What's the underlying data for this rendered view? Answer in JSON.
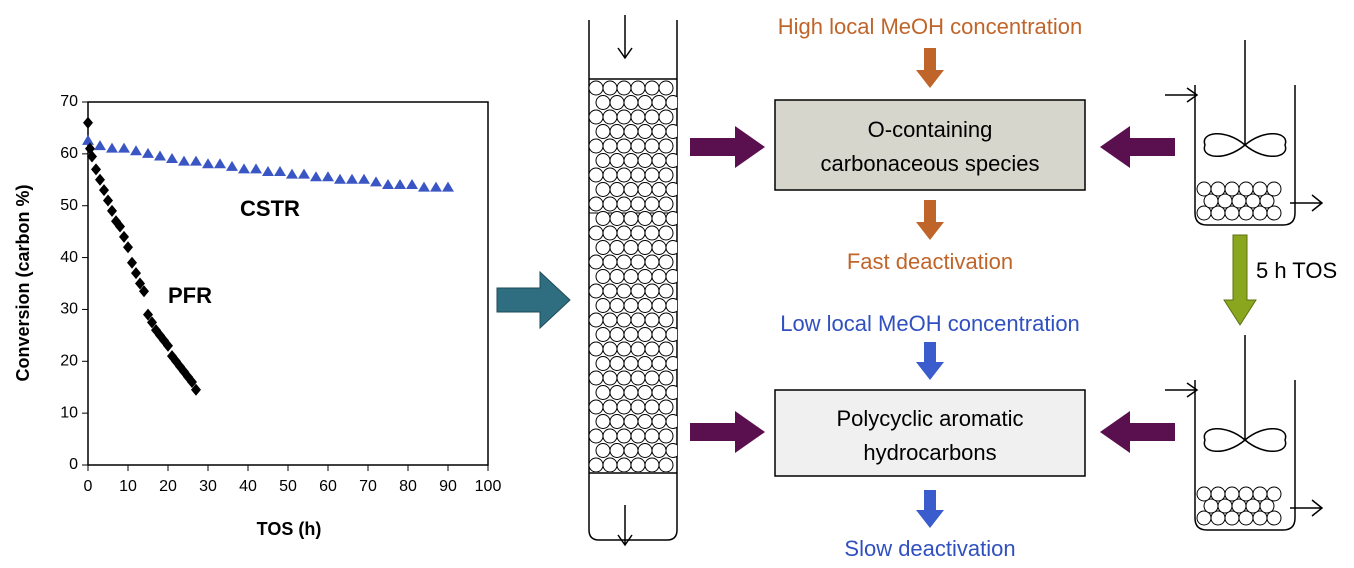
{
  "chart_data": {
    "type": "scatter",
    "xlabel": "TOS (h)",
    "ylabel": "Conversion (carbon %)",
    "xlim": [
      0,
      100
    ],
    "ylim": [
      0,
      70
    ],
    "xticks": [
      0,
      10,
      20,
      30,
      40,
      50,
      60,
      70,
      80,
      90,
      100
    ],
    "yticks": [
      0,
      10,
      20,
      30,
      40,
      50,
      60,
      70
    ],
    "series": [
      {
        "name": "CSTR",
        "color": "#3a56c4",
        "marker": "triangle",
        "x": [
          0,
          3,
          6,
          9,
          12,
          15,
          18,
          21,
          24,
          27,
          30,
          33,
          36,
          39,
          42,
          45,
          48,
          51,
          54,
          57,
          60,
          63,
          66,
          69,
          72,
          75,
          78,
          81,
          84,
          87,
          90
        ],
        "values": [
          62.5,
          61.5,
          61,
          61,
          60.5,
          60,
          59.5,
          59,
          58.5,
          58.5,
          58,
          58,
          57.5,
          57,
          57,
          56.5,
          56.5,
          56,
          56,
          55.5,
          55.5,
          55,
          55,
          55,
          54.5,
          54,
          54,
          54,
          53.5,
          53.5,
          53.5
        ]
      },
      {
        "name": "PFR",
        "color": "#000000",
        "marker": "diamond",
        "x": [
          0,
          0.5,
          1,
          2,
          3,
          4,
          5,
          6,
          7,
          8,
          9,
          10,
          11,
          12,
          13,
          14,
          15,
          16,
          17,
          18,
          19,
          20,
          21,
          22,
          23,
          24,
          25,
          26,
          27
        ],
        "values": [
          66,
          61,
          59.5,
          57,
          55,
          53,
          51,
          49,
          47,
          46,
          44,
          42,
          39,
          37,
          35,
          33.5,
          29,
          27.5,
          26,
          25,
          24,
          23,
          21,
          20,
          19,
          18,
          17,
          16,
          14.5
        ]
      }
    ]
  },
  "diagram": {
    "high_label": "High local MeOH concentration",
    "box1": [
      "O-containing",
      "carbonaceous species"
    ],
    "fast_label": "Fast deactivation",
    "low_label": "Low local MeOH concentration",
    "box2": [
      "Polycyclic aromatic",
      "hydrocarbons"
    ],
    "slow_label": "Slow deactivation",
    "time_label": "5 h TOS"
  }
}
